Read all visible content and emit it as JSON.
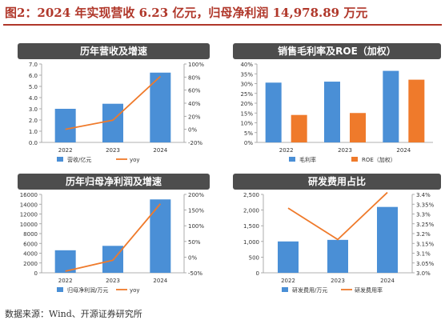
{
  "figure_title": "图2：2024 年实现营收 6.23 亿元，归母净利润 14,978.89 万元",
  "source": "数据来源：Wind、开源证券研究所",
  "colors": {
    "bar_blue": "#4a8fd6",
    "bar_orange": "#ef7a2b",
    "line_orange": "#ef7a2b",
    "header_bg": "#4d4d4d",
    "title_red": "#b0372a"
  },
  "chart_data": [
    {
      "type": "bar",
      "title": "历年营收及增速",
      "categories": [
        "2022",
        "2023",
        "2024"
      ],
      "series": [
        {
          "name": "营收/亿元",
          "kind": "bar",
          "axis": "left",
          "values": [
            3.0,
            3.45,
            6.23
          ]
        },
        {
          "name": "yoy",
          "kind": "line",
          "axis": "right",
          "values": [
            0.0,
            0.14,
            0.81
          ]
        }
      ],
      "ylim": [
        0,
        7
      ],
      "yticks": [
        "0.0",
        "1.0",
        "2.0",
        "3.0",
        "4.0",
        "5.0",
        "6.0",
        "7.0"
      ],
      "y2lim": [
        -0.2,
        1.0
      ],
      "y2ticks": [
        "-20%",
        "0%",
        "20%",
        "40%",
        "60%",
        "80%",
        "100%"
      ],
      "grid": false,
      "legend": "bottom"
    },
    {
      "type": "bar",
      "title": "销售毛利率及ROE（加权）",
      "categories": [
        "2022",
        "2023",
        "2024"
      ],
      "series": [
        {
          "name": "毛利率",
          "kind": "bar",
          "axis": "left",
          "values": [
            30.5,
            31.0,
            36.5
          ]
        },
        {
          "name": "ROE（加权）",
          "kind": "bar",
          "axis": "left",
          "values": [
            14.0,
            15.0,
            32.0
          ]
        }
      ],
      "ylim": [
        0,
        40
      ],
      "yticks": [
        "0%",
        "5%",
        "10%",
        "15%",
        "20%",
        "25%",
        "30%",
        "35%",
        "40%"
      ],
      "grid": false,
      "legend": "bottom"
    },
    {
      "type": "bar",
      "title": "历年归母净利润及增速",
      "categories": [
        "2022",
        "2023",
        "2024"
      ],
      "series": [
        {
          "name": "归母净利润/万元",
          "kind": "bar",
          "axis": "left",
          "values": [
            4600,
            5500,
            14978.89
          ]
        },
        {
          "name": "yoy",
          "kind": "line",
          "axis": "right",
          "values": [
            -0.45,
            -0.1,
            1.7
          ]
        }
      ],
      "ylim": [
        0,
        16000
      ],
      "yticks": [
        "0",
        "2000",
        "4000",
        "6000",
        "8000",
        "10000",
        "12000",
        "14000",
        "16000"
      ],
      "y2lim": [
        -0.5,
        2.0
      ],
      "y2ticks": [
        "-50%",
        "0%",
        "50%",
        "100%",
        "150%",
        "200%"
      ],
      "grid": false,
      "legend": "bottom"
    },
    {
      "type": "bar",
      "title": "研发费用占比",
      "categories": [
        "2022",
        "2023",
        "2024"
      ],
      "series": [
        {
          "name": "研发费用/万元",
          "kind": "bar",
          "axis": "left",
          "values": [
            1000,
            1050,
            2100
          ]
        },
        {
          "name": "研发费用率",
          "kind": "line",
          "axis": "right",
          "values": [
            3.33,
            3.17,
            3.41
          ]
        }
      ],
      "ylim": [
        0,
        2500
      ],
      "yticks": [
        "0",
        "500",
        "1,000",
        "1,500",
        "2,000",
        "2,500"
      ],
      "y2lim": [
        3.0,
        3.4
      ],
      "y2ticks": [
        "3.0%",
        "3.05%",
        "3.1%",
        "3.15%",
        "3.2%",
        "3.25%",
        "3.3%",
        "3.35%",
        "3.4%"
      ],
      "grid": false,
      "legend": "bottom"
    }
  ]
}
